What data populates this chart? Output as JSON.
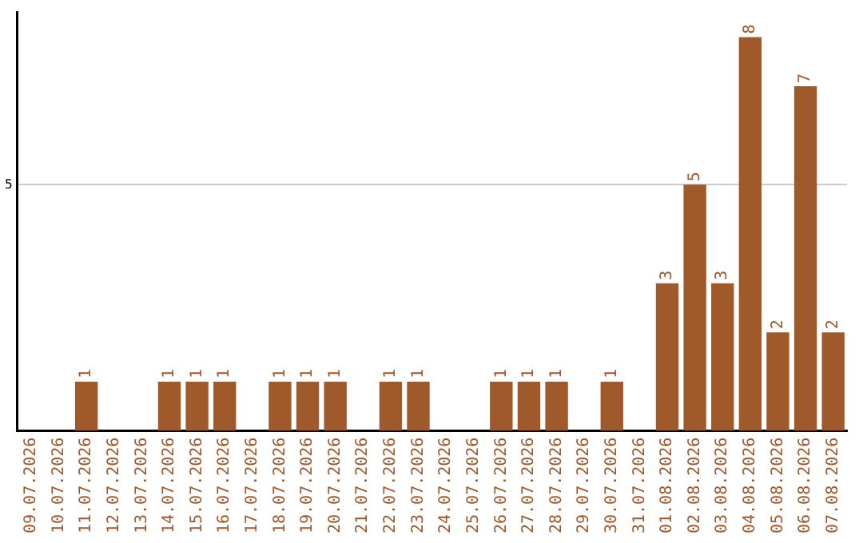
{
  "chart_data": {
    "type": "bar",
    "categories": [
      "09.07.2026",
      "10.07.2026",
      "11.07.2026",
      "12.07.2026",
      "13.07.2026",
      "14.07.2026",
      "15.07.2026",
      "16.07.2026",
      "17.07.2026",
      "18.07.2026",
      "19.07.2026",
      "20.07.2026",
      "21.07.2026",
      "22.07.2026",
      "23.07.2026",
      "24.07.2026",
      "25.07.2026",
      "26.07.2026",
      "27.07.2026",
      "28.07.2026",
      "29.07.2026",
      "30.07.2026",
      "31.07.2026",
      "01.08.2026",
      "02.08.2026",
      "03.08.2026",
      "04.08.2026",
      "05.08.2026",
      "06.08.2026",
      "07.08.2026"
    ],
    "values": [
      0,
      0,
      1,
      0,
      0,
      1,
      1,
      1,
      0,
      1,
      1,
      1,
      0,
      1,
      1,
      0,
      0,
      1,
      1,
      1,
      0,
      1,
      0,
      3,
      5,
      3,
      8,
      2,
      7,
      2
    ],
    "value_labels": [
      null,
      null,
      "1",
      null,
      null,
      "1",
      "1",
      "1",
      null,
      "1",
      "1",
      "1",
      null,
      "1",
      "1",
      null,
      null,
      "1",
      "1",
      "1",
      null,
      "1",
      null,
      "3",
      "5",
      "3",
      "8",
      "2",
      "7",
      "2"
    ],
    "color": "#a0592a",
    "ylim": [
      0,
      8.5
    ],
    "yticks": [
      5
    ],
    "grid": "y",
    "legend": false
  }
}
